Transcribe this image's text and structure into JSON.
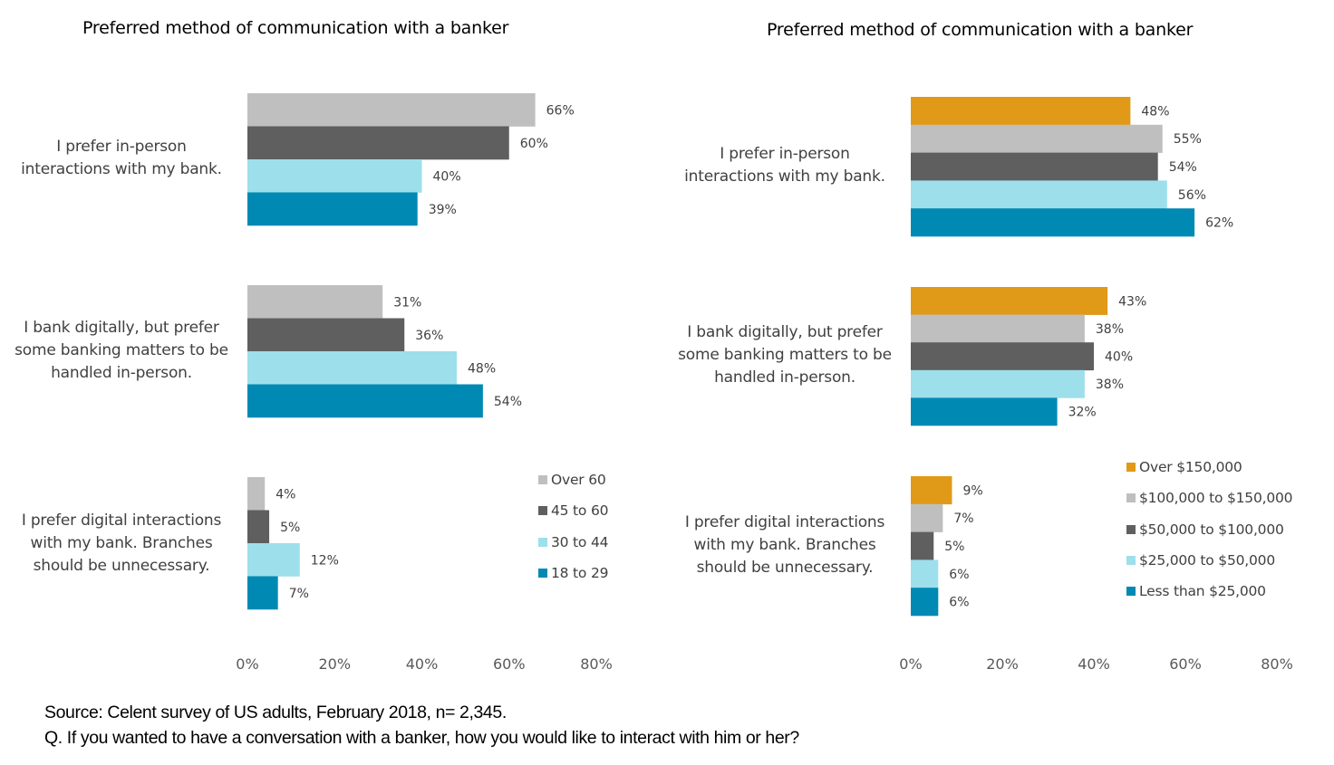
{
  "colors": {
    "over_60": "#BFBFBF",
    "45_to_60": "#5F5F5F",
    "30_to_44": "#9EDFEC",
    "18_to_29": "#0089B3",
    "over_150k": "#E09A17",
    "100k_150k": "#BFBFBF",
    "50k_100k": "#5F5F5F",
    "25k_50k": "#9EDFEC",
    "lt_25k": "#0089B3"
  },
  "chart_data": [
    {
      "type": "bar",
      "orientation": "horizontal",
      "title": "Preferred method of communication with a banker",
      "categories": [
        "I prefer in-person\ninteractions with my bank.",
        "I bank digitally, but prefer\nsome banking matters to be\nhandled in-person.",
        "I prefer digital interactions\nwith my bank. Branches\nshould be unnecessary."
      ],
      "series": [
        {
          "name": "Over 60",
          "color": "#BFBFBF",
          "values": [
            66,
            31,
            4
          ]
        },
        {
          "name": "45 to 60",
          "color": "#5F5F5F",
          "values": [
            60,
            36,
            5
          ]
        },
        {
          "name": "30 to 44",
          "color": "#9EDFEC",
          "values": [
            40,
            48,
            12
          ]
        },
        {
          "name": "18 to 29",
          "color": "#0089B3",
          "values": [
            39,
            54,
            7
          ]
        }
      ],
      "xlabel": "",
      "ylabel": "",
      "xlim": [
        0,
        80
      ],
      "xticks": [
        "0%",
        "20%",
        "40%",
        "60%",
        "80%"
      ],
      "value_suffix": "%",
      "grid": false,
      "legend": "right"
    },
    {
      "type": "bar",
      "orientation": "horizontal",
      "title": "Preferred method of communication with a banker",
      "categories": [
        "I prefer in-person\ninteractions with my bank.",
        "I bank digitally, but prefer\nsome banking matters to be\nhandled in-person.",
        "I prefer digital interactions\nwith my bank. Branches\nshould be unnecessary."
      ],
      "series": [
        {
          "name": "Over $150,000",
          "color": "#E09A17",
          "values": [
            48,
            43,
            9
          ]
        },
        {
          "name": "$100,000 to $150,000",
          "color": "#BFBFBF",
          "values": [
            55,
            38,
            7
          ]
        },
        {
          "name": "$50,000 to $100,000",
          "color": "#5F5F5F",
          "values": [
            54,
            40,
            5
          ]
        },
        {
          "name": "$25,000 to $50,000",
          "color": "#9EDFEC",
          "values": [
            56,
            38,
            6
          ]
        },
        {
          "name": "Less than $25,000",
          "color": "#0089B3",
          "values": [
            62,
            32,
            6
          ]
        }
      ],
      "xlabel": "",
      "ylabel": "",
      "xlim": [
        0,
        80
      ],
      "xticks": [
        "0%",
        "20%",
        "40%",
        "60%",
        "80%"
      ],
      "value_suffix": "%",
      "grid": false,
      "legend": "right"
    }
  ],
  "footer": {
    "source": "Source: Celent survey of US adults, February 2018, n= 2,345.",
    "question": "Q. If you wanted to have a conversation with a banker, how you would like to interact with him or her?"
  }
}
